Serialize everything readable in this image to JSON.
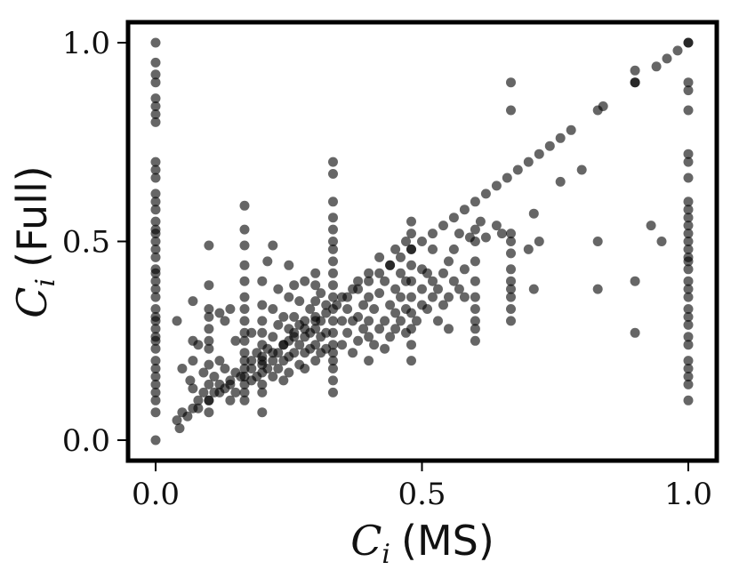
{
  "chart_data": {
    "type": "scatter",
    "title": "",
    "xlabel": {
      "symbol": "C",
      "subscript": "i",
      "text": "(MS)"
    },
    "ylabel": {
      "symbol": "C",
      "subscript": "i",
      "text": "(Full)"
    },
    "xlim": [
      -0.05,
      1.05
    ],
    "ylim": [
      -0.05,
      1.05
    ],
    "xticks": [
      0.0,
      0.5,
      1.0
    ],
    "yticks": [
      0.0,
      0.5,
      1.0
    ],
    "xtick_labels": [
      "0.0",
      "0.5",
      "1.0"
    ],
    "ytick_labels": [
      "0.0",
      "0.5",
      "1.0"
    ],
    "grid": false,
    "marker_color": "#000000",
    "marker_opacity": 0.6,
    "points": [
      [
        0.0,
        1.0
      ],
      [
        0.0,
        0.95
      ],
      [
        0.0,
        0.92
      ],
      [
        0.0,
        0.9
      ],
      [
        0.0,
        0.86
      ],
      [
        0.0,
        0.84
      ],
      [
        0.0,
        0.82
      ],
      [
        0.0,
        0.8
      ],
      [
        0.0,
        0.7
      ],
      [
        0.0,
        0.68
      ],
      [
        0.0,
        0.66
      ],
      [
        0.0,
        0.62
      ],
      [
        0.0,
        0.6
      ],
      [
        0.0,
        0.58
      ],
      [
        0.0,
        0.55
      ],
      [
        0.0,
        0.53
      ],
      [
        0.0,
        0.52
      ],
      [
        0.0,
        0.5
      ],
      [
        0.0,
        0.48
      ],
      [
        0.0,
        0.46
      ],
      [
        0.0,
        0.43
      ],
      [
        0.0,
        0.42
      ],
      [
        0.0,
        0.4
      ],
      [
        0.0,
        0.38
      ],
      [
        0.0,
        0.36
      ],
      [
        0.0,
        0.33
      ],
      [
        0.0,
        0.31
      ],
      [
        0.0,
        0.3
      ],
      [
        0.0,
        0.28
      ],
      [
        0.0,
        0.26
      ],
      [
        0.0,
        0.25
      ],
      [
        0.0,
        0.23
      ],
      [
        0.0,
        0.2
      ],
      [
        0.0,
        0.18
      ],
      [
        0.0,
        0.16
      ],
      [
        0.0,
        0.14
      ],
      [
        0.0,
        0.12
      ],
      [
        0.0,
        0.1
      ],
      [
        0.0,
        0.07
      ],
      [
        0.0,
        0.0
      ],
      [
        1.0,
        1.0
      ],
      [
        1.0,
        0.9
      ],
      [
        1.0,
        0.88
      ],
      [
        1.0,
        0.83
      ],
      [
        1.0,
        0.72
      ],
      [
        1.0,
        0.7
      ],
      [
        1.0,
        0.66
      ],
      [
        1.0,
        0.6
      ],
      [
        1.0,
        0.58
      ],
      [
        1.0,
        0.56
      ],
      [
        1.0,
        0.54
      ],
      [
        1.0,
        0.52
      ],
      [
        1.0,
        0.5
      ],
      [
        1.0,
        0.48
      ],
      [
        1.0,
        0.46
      ],
      [
        1.0,
        0.45
      ],
      [
        1.0,
        0.43
      ],
      [
        1.0,
        0.4
      ],
      [
        1.0,
        0.38
      ],
      [
        1.0,
        0.36
      ],
      [
        1.0,
        0.33
      ],
      [
        1.0,
        0.31
      ],
      [
        1.0,
        0.29
      ],
      [
        1.0,
        0.26
      ],
      [
        1.0,
        0.24
      ],
      [
        1.0,
        0.2
      ],
      [
        1.0,
        0.18
      ],
      [
        1.0,
        0.16
      ],
      [
        1.0,
        0.14
      ],
      [
        1.0,
        0.1
      ],
      [
        0.04,
        0.05
      ],
      [
        0.045,
        0.03
      ],
      [
        0.05,
        0.07
      ],
      [
        0.06,
        0.06
      ],
      [
        0.07,
        0.08
      ],
      [
        0.08,
        0.1
      ],
      [
        0.07,
        0.13
      ],
      [
        0.065,
        0.15
      ],
      [
        0.05,
        0.18
      ],
      [
        0.04,
        0.3
      ],
      [
        0.07,
        0.2
      ],
      [
        0.07,
        0.25
      ],
      [
        0.07,
        0.35
      ],
      [
        0.08,
        0.24
      ],
      [
        0.09,
        0.12
      ],
      [
        0.09,
        0.17
      ],
      [
        0.1,
        0.07
      ],
      [
        0.1,
        0.1
      ],
      [
        0.1,
        0.14
      ],
      [
        0.1,
        0.19
      ],
      [
        0.1,
        0.23
      ],
      [
        0.1,
        0.25
      ],
      [
        0.1,
        0.28
      ],
      [
        0.1,
        0.31
      ],
      [
        0.1,
        0.33
      ],
      [
        0.1,
        0.39
      ],
      [
        0.1,
        0.49
      ],
      [
        0.11,
        0.12
      ],
      [
        0.11,
        0.16
      ],
      [
        0.12,
        0.14
      ],
      [
        0.12,
        0.2
      ],
      [
        0.12,
        0.32
      ],
      [
        0.13,
        0.13
      ],
      [
        0.13,
        0.18
      ],
      [
        0.13,
        0.3
      ],
      [
        0.14,
        0.15
      ],
      [
        0.14,
        0.1
      ],
      [
        0.14,
        0.33
      ],
      [
        0.15,
        0.17
      ],
      [
        0.15,
        0.12
      ],
      [
        0.15,
        0.25
      ],
      [
        0.167,
        0.1
      ],
      [
        0.167,
        0.12
      ],
      [
        0.167,
        0.14
      ],
      [
        0.167,
        0.16
      ],
      [
        0.167,
        0.18
      ],
      [
        0.167,
        0.2
      ],
      [
        0.167,
        0.22
      ],
      [
        0.167,
        0.25
      ],
      [
        0.167,
        0.27
      ],
      [
        0.167,
        0.3
      ],
      [
        0.167,
        0.33
      ],
      [
        0.167,
        0.36
      ],
      [
        0.167,
        0.4
      ],
      [
        0.167,
        0.44
      ],
      [
        0.167,
        0.49
      ],
      [
        0.167,
        0.53
      ],
      [
        0.167,
        0.59
      ],
      [
        0.18,
        0.15
      ],
      [
        0.18,
        0.2
      ],
      [
        0.18,
        0.27
      ],
      [
        0.19,
        0.16
      ],
      [
        0.19,
        0.22
      ],
      [
        0.2,
        0.12
      ],
      [
        0.2,
        0.14
      ],
      [
        0.2,
        0.17
      ],
      [
        0.2,
        0.19
      ],
      [
        0.2,
        0.21
      ],
      [
        0.2,
        0.24
      ],
      [
        0.2,
        0.27
      ],
      [
        0.2,
        0.3
      ],
      [
        0.2,
        0.34
      ],
      [
        0.2,
        0.4
      ],
      [
        0.2,
        0.07
      ],
      [
        0.21,
        0.18
      ],
      [
        0.21,
        0.23
      ],
      [
        0.21,
        0.45
      ],
      [
        0.22,
        0.16
      ],
      [
        0.22,
        0.2
      ],
      [
        0.22,
        0.26
      ],
      [
        0.22,
        0.33
      ],
      [
        0.22,
        0.49
      ],
      [
        0.23,
        0.18
      ],
      [
        0.23,
        0.22
      ],
      [
        0.23,
        0.29
      ],
      [
        0.23,
        0.38
      ],
      [
        0.24,
        0.2
      ],
      [
        0.24,
        0.24
      ],
      [
        0.24,
        0.31
      ],
      [
        0.24,
        0.15
      ],
      [
        0.25,
        0.21
      ],
      [
        0.25,
        0.25
      ],
      [
        0.25,
        0.28
      ],
      [
        0.25,
        0.36
      ],
      [
        0.25,
        0.44
      ],
      [
        0.25,
        0.17
      ],
      [
        0.26,
        0.22
      ],
      [
        0.26,
        0.27
      ],
      [
        0.26,
        0.31
      ],
      [
        0.26,
        0.39
      ],
      [
        0.27,
        0.19
      ],
      [
        0.27,
        0.24
      ],
      [
        0.27,
        0.29
      ],
      [
        0.27,
        0.35
      ],
      [
        0.28,
        0.22
      ],
      [
        0.28,
        0.26
      ],
      [
        0.28,
        0.3
      ],
      [
        0.28,
        0.4
      ],
      [
        0.28,
        0.18
      ],
      [
        0.29,
        0.23
      ],
      [
        0.29,
        0.27
      ],
      [
        0.29,
        0.33
      ],
      [
        0.3,
        0.2
      ],
      [
        0.3,
        0.24
      ],
      [
        0.3,
        0.28
      ],
      [
        0.3,
        0.31
      ],
      [
        0.3,
        0.35
      ],
      [
        0.3,
        0.39
      ],
      [
        0.3,
        0.42
      ],
      [
        0.31,
        0.22
      ],
      [
        0.31,
        0.26
      ],
      [
        0.31,
        0.3
      ],
      [
        0.31,
        0.37
      ],
      [
        0.32,
        0.23
      ],
      [
        0.32,
        0.27
      ],
      [
        0.32,
        0.34
      ],
      [
        0.333,
        0.12
      ],
      [
        0.333,
        0.15
      ],
      [
        0.333,
        0.18
      ],
      [
        0.333,
        0.2
      ],
      [
        0.333,
        0.22
      ],
      [
        0.333,
        0.24
      ],
      [
        0.333,
        0.27
      ],
      [
        0.333,
        0.3
      ],
      [
        0.333,
        0.33
      ],
      [
        0.333,
        0.36
      ],
      [
        0.333,
        0.39
      ],
      [
        0.333,
        0.42
      ],
      [
        0.333,
        0.45
      ],
      [
        0.333,
        0.48
      ],
      [
        0.333,
        0.5
      ],
      [
        0.333,
        0.53
      ],
      [
        0.333,
        0.56
      ],
      [
        0.333,
        0.6
      ],
      [
        0.333,
        0.67
      ],
      [
        0.333,
        0.7
      ],
      [
        0.35,
        0.24
      ],
      [
        0.35,
        0.3
      ],
      [
        0.35,
        0.36
      ],
      [
        0.36,
        0.27
      ],
      [
        0.36,
        0.33
      ],
      [
        0.37,
        0.22
      ],
      [
        0.37,
        0.3
      ],
      [
        0.37,
        0.38
      ],
      [
        0.38,
        0.25
      ],
      [
        0.38,
        0.31
      ],
      [
        0.38,
        0.4
      ],
      [
        0.39,
        0.28
      ],
      [
        0.39,
        0.34
      ],
      [
        0.4,
        0.2
      ],
      [
        0.4,
        0.26
      ],
      [
        0.4,
        0.3
      ],
      [
        0.4,
        0.36
      ],
      [
        0.4,
        0.42
      ],
      [
        0.41,
        0.24
      ],
      [
        0.41,
        0.33
      ],
      [
        0.42,
        0.28
      ],
      [
        0.42,
        0.37
      ],
      [
        0.42,
        0.46
      ],
      [
        0.43,
        0.23
      ],
      [
        0.43,
        0.3
      ],
      [
        0.43,
        0.4
      ],
      [
        0.44,
        0.26
      ],
      [
        0.44,
        0.34
      ],
      [
        0.44,
        0.44
      ],
      [
        0.45,
        0.28
      ],
      [
        0.45,
        0.32
      ],
      [
        0.45,
        0.38
      ],
      [
        0.45,
        0.48
      ],
      [
        0.46,
        0.3
      ],
      [
        0.46,
        0.36
      ],
      [
        0.46,
        0.42
      ],
      [
        0.47,
        0.27
      ],
      [
        0.47,
        0.33
      ],
      [
        0.47,
        0.4
      ],
      [
        0.47,
        0.5
      ],
      [
        0.48,
        0.2
      ],
      [
        0.48,
        0.24
      ],
      [
        0.48,
        0.28
      ],
      [
        0.48,
        0.32
      ],
      [
        0.48,
        0.36
      ],
      [
        0.48,
        0.4
      ],
      [
        0.48,
        0.44
      ],
      [
        0.48,
        0.48
      ],
      [
        0.48,
        0.52
      ],
      [
        0.48,
        0.55
      ],
      [
        0.49,
        0.3
      ],
      [
        0.5,
        0.34
      ],
      [
        0.5,
        0.38
      ],
      [
        0.5,
        0.43
      ],
      [
        0.51,
        0.33
      ],
      [
        0.51,
        0.42
      ],
      [
        0.52,
        0.36
      ],
      [
        0.52,
        0.4
      ],
      [
        0.52,
        0.48
      ],
      [
        0.53,
        0.3
      ],
      [
        0.53,
        0.38
      ],
      [
        0.54,
        0.34
      ],
      [
        0.54,
        0.42
      ],
      [
        0.55,
        0.28
      ],
      [
        0.55,
        0.36
      ],
      [
        0.55,
        0.45
      ],
      [
        0.56,
        0.4
      ],
      [
        0.56,
        0.48
      ],
      [
        0.57,
        0.38
      ],
      [
        0.57,
        0.52
      ],
      [
        0.58,
        0.36
      ],
      [
        0.58,
        0.43
      ],
      [
        0.59,
        0.51
      ],
      [
        0.6,
        0.25
      ],
      [
        0.6,
        0.28
      ],
      [
        0.6,
        0.3
      ],
      [
        0.6,
        0.33
      ],
      [
        0.6,
        0.36
      ],
      [
        0.6,
        0.4
      ],
      [
        0.6,
        0.45
      ],
      [
        0.6,
        0.5
      ],
      [
        0.6,
        0.53
      ],
      [
        0.61,
        0.55
      ],
      [
        0.62,
        0.51
      ],
      [
        0.64,
        0.54
      ],
      [
        0.65,
        0.52
      ],
      [
        0.667,
        0.3
      ],
      [
        0.667,
        0.33
      ],
      [
        0.667,
        0.36
      ],
      [
        0.667,
        0.38
      ],
      [
        0.667,
        0.4
      ],
      [
        0.667,
        0.43
      ],
      [
        0.667,
        0.47
      ],
      [
        0.667,
        0.5
      ],
      [
        0.667,
        0.52
      ],
      [
        0.667,
        0.83
      ],
      [
        0.667,
        0.9
      ],
      [
        0.7,
        0.48
      ],
      [
        0.71,
        0.57
      ],
      [
        0.71,
        0.38
      ],
      [
        0.72,
        0.5
      ],
      [
        0.76,
        0.65
      ],
      [
        0.8,
        0.68
      ],
      [
        0.83,
        0.5
      ],
      [
        0.83,
        0.38
      ],
      [
        0.9,
        0.4
      ],
      [
        0.9,
        0.27
      ],
      [
        0.9,
        0.9
      ],
      [
        0.9,
        0.93
      ],
      [
        0.93,
        0.54
      ],
      [
        0.95,
        0.5
      ],
      [
        0.08,
        0.08
      ],
      [
        0.1,
        0.1
      ],
      [
        0.12,
        0.12
      ],
      [
        0.14,
        0.14
      ],
      [
        0.16,
        0.16
      ],
      [
        0.18,
        0.18
      ],
      [
        0.2,
        0.2
      ],
      [
        0.22,
        0.22
      ],
      [
        0.24,
        0.24
      ],
      [
        0.26,
        0.26
      ],
      [
        0.28,
        0.28
      ],
      [
        0.3,
        0.3
      ],
      [
        0.32,
        0.32
      ],
      [
        0.34,
        0.34
      ],
      [
        0.36,
        0.36
      ],
      [
        0.38,
        0.38
      ],
      [
        0.4,
        0.4
      ],
      [
        0.42,
        0.42
      ],
      [
        0.44,
        0.44
      ],
      [
        0.46,
        0.46
      ],
      [
        0.48,
        0.48
      ],
      [
        0.5,
        0.5
      ],
      [
        0.52,
        0.52
      ],
      [
        0.54,
        0.54
      ],
      [
        0.56,
        0.56
      ],
      [
        0.58,
        0.58
      ],
      [
        0.6,
        0.6
      ],
      [
        0.62,
        0.62
      ],
      [
        0.64,
        0.64
      ],
      [
        0.66,
        0.66
      ],
      [
        0.68,
        0.68
      ],
      [
        0.7,
        0.7
      ],
      [
        0.72,
        0.72
      ],
      [
        0.74,
        0.74
      ],
      [
        0.76,
        0.76
      ],
      [
        0.78,
        0.78
      ],
      [
        0.83,
        0.83
      ],
      [
        0.84,
        0.84
      ],
      [
        0.9,
        0.9
      ],
      [
        0.94,
        0.94
      ],
      [
        0.96,
        0.96
      ],
      [
        0.98,
        0.98
      ],
      [
        1.0,
        1.0
      ]
    ]
  }
}
